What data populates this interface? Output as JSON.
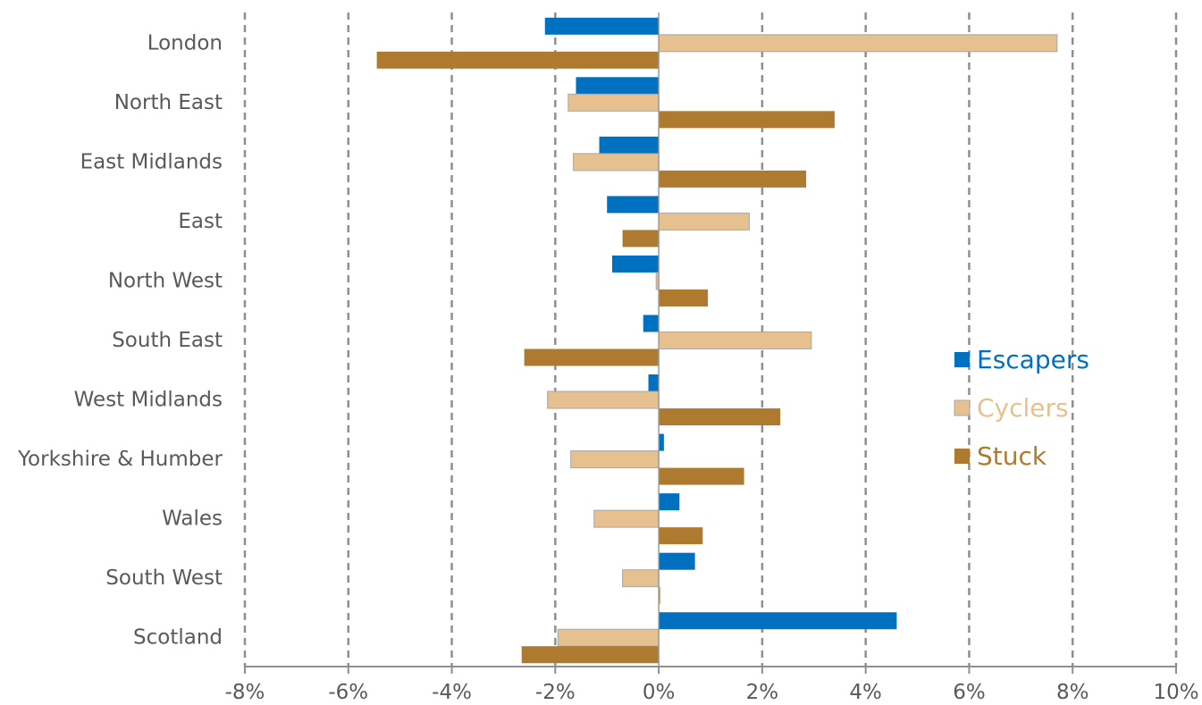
{
  "chart_data": {
    "type": "bar",
    "orientation": "horizontal",
    "categories": [
      "London",
      "North East",
      "East Midlands",
      "East",
      "North West",
      "South East",
      "West Midlands",
      "Yorkshire & Humber",
      "Wales",
      "South West",
      "Scotland"
    ],
    "series": [
      {
        "name": "Escapers",
        "color": "#0070c0",
        "values": [
          -2.2,
          -1.6,
          -1.15,
          -1.0,
          -0.9,
          -0.3,
          -0.2,
          0.1,
          0.4,
          0.7,
          4.6
        ]
      },
      {
        "name": "Cyclers",
        "color": "#e6c08f",
        "values": [
          7.7,
          -1.75,
          -1.65,
          1.75,
          -0.05,
          2.95,
          -2.15,
          -1.7,
          -1.25,
          -0.7,
          -1.95
        ]
      },
      {
        "name": "Stuck",
        "color": "#ae7a2f",
        "values": [
          -5.45,
          3.4,
          2.85,
          -0.7,
          0.95,
          -2.6,
          2.35,
          1.65,
          0.85,
          0.0,
          -2.65
        ]
      }
    ],
    "xlim": [
      -8,
      10
    ],
    "xticks": [
      -8,
      -6,
      -4,
      -2,
      0,
      2,
      4,
      6,
      8,
      10
    ],
    "xtick_labels": [
      "-8%",
      "-6%",
      "-4%",
      "-2%",
      "0%",
      "2%",
      "4%",
      "6%",
      "8%",
      "10%"
    ],
    "grid": "vertical dashed",
    "legend_position": "right"
  }
}
